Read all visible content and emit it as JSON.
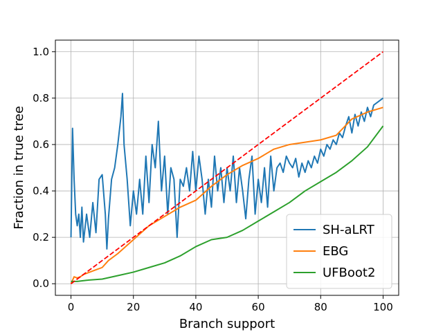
{
  "chart_data": {
    "type": "line",
    "xlabel": "Branch support",
    "ylabel": "Fraction in true tree",
    "xlim": [
      -5,
      105
    ],
    "ylim": [
      -0.05,
      1.05
    ],
    "xticks": [
      "0",
      "20",
      "40",
      "60",
      "80",
      "100"
    ],
    "yticks": [
      "0.0",
      "0.2",
      "0.4",
      "0.6",
      "0.8",
      "1.0"
    ],
    "grid": true,
    "legend_position": "lower-right",
    "series": [
      {
        "name": "SH-aLRT",
        "color": "#1f77b4",
        "style": "solid",
        "x": [
          0,
          0.5,
          1,
          1.5,
          2,
          2.5,
          3,
          3.5,
          4,
          5,
          6,
          7,
          8,
          9,
          10,
          11,
          11.5,
          12,
          13,
          14,
          15,
          16,
          16.5,
          17,
          18,
          19,
          20,
          21,
          22,
          23,
          24,
          25,
          26,
          27,
          28,
          29,
          30,
          31,
          32,
          33,
          34,
          35,
          36,
          37,
          38,
          39,
          40,
          41,
          42,
          43,
          44,
          45,
          46,
          47,
          48,
          49,
          50,
          51,
          52,
          53,
          54,
          55,
          56,
          57,
          58,
          59,
          60,
          61,
          62,
          63,
          64,
          65,
          66,
          67,
          68,
          69,
          70,
          71,
          72,
          73,
          74,
          75,
          76,
          77,
          78,
          79,
          80,
          81,
          82,
          83,
          84,
          85,
          86,
          87,
          88,
          89,
          90,
          91,
          92,
          93,
          94,
          95,
          96,
          97,
          98,
          99,
          100
        ],
        "y": [
          0.2,
          0.67,
          0.45,
          0.3,
          0.25,
          0.3,
          0.2,
          0.33,
          0.18,
          0.3,
          0.2,
          0.35,
          0.22,
          0.45,
          0.47,
          0.3,
          0.15,
          0.28,
          0.45,
          0.5,
          0.6,
          0.72,
          0.82,
          0.6,
          0.45,
          0.25,
          0.4,
          0.3,
          0.45,
          0.3,
          0.55,
          0.35,
          0.6,
          0.5,
          0.7,
          0.4,
          0.55,
          0.3,
          0.5,
          0.45,
          0.2,
          0.45,
          0.42,
          0.5,
          0.4,
          0.57,
          0.4,
          0.55,
          0.45,
          0.3,
          0.45,
          0.33,
          0.55,
          0.4,
          0.5,
          0.35,
          0.5,
          0.4,
          0.55,
          0.35,
          0.5,
          0.4,
          0.28,
          0.45,
          0.55,
          0.3,
          0.45,
          0.35,
          0.5,
          0.33,
          0.55,
          0.4,
          0.5,
          0.52,
          0.48,
          0.55,
          0.52,
          0.5,
          0.54,
          0.46,
          0.52,
          0.48,
          0.53,
          0.5,
          0.55,
          0.52,
          0.58,
          0.55,
          0.6,
          0.58,
          0.62,
          0.6,
          0.65,
          0.63,
          0.68,
          0.72,
          0.65,
          0.73,
          0.68,
          0.74,
          0.7,
          0.76,
          0.72,
          0.77,
          0.78,
          0.79,
          0.8
        ]
      },
      {
        "name": "EBG",
        "color": "#ff7f0e",
        "style": "solid",
        "x": [
          0,
          1,
          2,
          3,
          4,
          6,
          8,
          10,
          12,
          15,
          20,
          25,
          30,
          35,
          40,
          45,
          50,
          55,
          60,
          65,
          70,
          75,
          80,
          85,
          90,
          95,
          100
        ],
        "y": [
          0.0,
          0.03,
          0.025,
          0.03,
          0.04,
          0.05,
          0.06,
          0.07,
          0.1,
          0.13,
          0.19,
          0.25,
          0.29,
          0.33,
          0.36,
          0.42,
          0.47,
          0.51,
          0.54,
          0.58,
          0.6,
          0.61,
          0.62,
          0.64,
          0.71,
          0.74,
          0.76
        ]
      },
      {
        "name": "UFBoot2",
        "color": "#2ca02c",
        "style": "solid",
        "x": [
          0,
          2,
          5,
          10,
          15,
          20,
          25,
          30,
          35,
          40,
          45,
          50,
          55,
          60,
          65,
          70,
          75,
          80,
          85,
          90,
          95,
          100
        ],
        "y": [
          0.01,
          0.01,
          0.015,
          0.02,
          0.035,
          0.05,
          0.07,
          0.09,
          0.12,
          0.16,
          0.19,
          0.2,
          0.23,
          0.27,
          0.31,
          0.35,
          0.4,
          0.44,
          0.48,
          0.53,
          0.59,
          0.68
        ]
      },
      {
        "color": "#ff0000",
        "style": "dashed",
        "x": [
          0,
          100
        ],
        "y": [
          0.0,
          1.0
        ]
      }
    ]
  }
}
